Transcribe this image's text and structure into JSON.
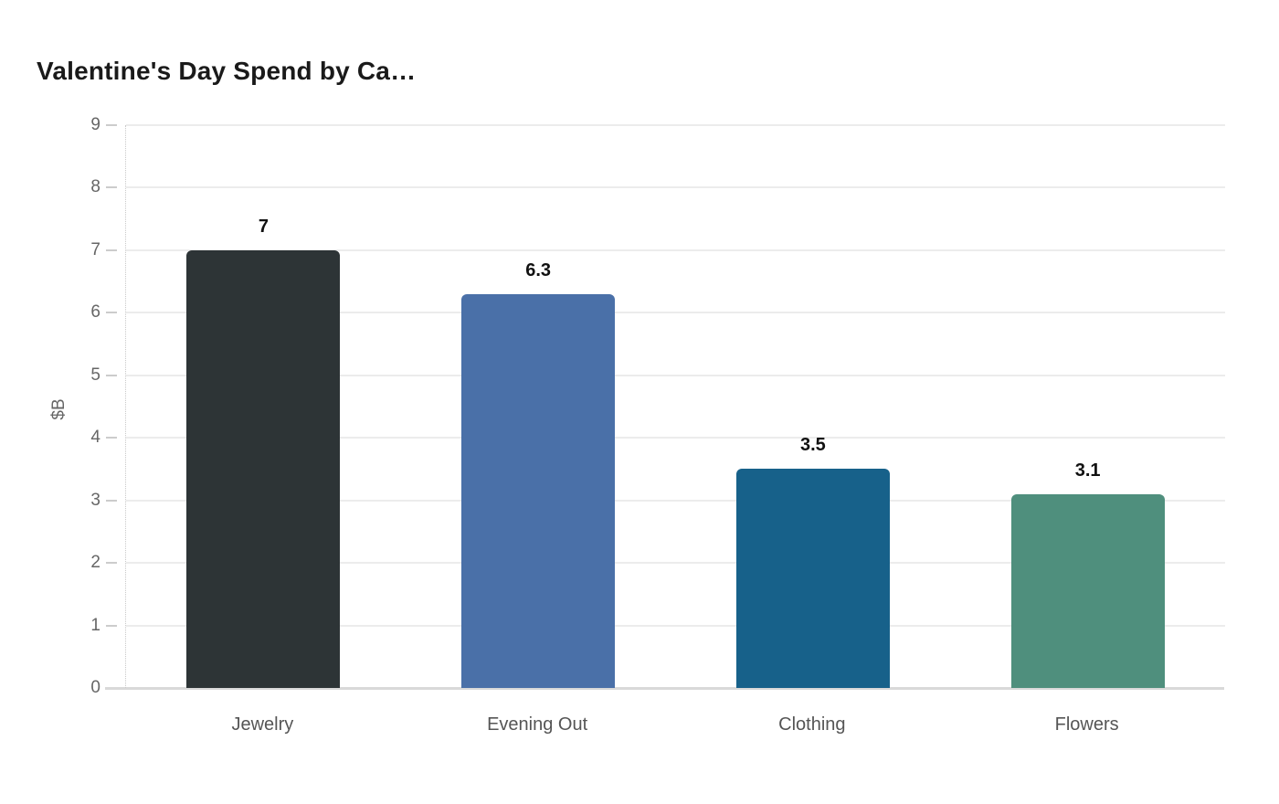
{
  "chart_data": {
    "type": "bar",
    "title": "Valentine's Day Spend by Ca…",
    "ylabel": "$B",
    "xlabel": "",
    "categories": [
      "Jewelry",
      "Evening Out",
      "Clothing",
      "Flowers"
    ],
    "values": [
      7,
      6.3,
      3.5,
      3.1
    ],
    "value_labels": [
      "7",
      "6.3",
      "3.5",
      "3.1"
    ],
    "bar_colors": [
      "#2d3436",
      "#4a70a8",
      "#17618a",
      "#4f8f7d"
    ],
    "ylim": [
      0,
      9
    ],
    "yticks": [
      0,
      1,
      2,
      3,
      4,
      5,
      6,
      7,
      8,
      9
    ],
    "grid": "horizontal",
    "legend": "none",
    "grid_color": "#ececec",
    "baseline_color": "#d9d9d9",
    "tick_label_color": "#666666",
    "category_label_color": "#555555",
    "value_label_color": "#111111",
    "title_color": "#1a1a1a"
  }
}
